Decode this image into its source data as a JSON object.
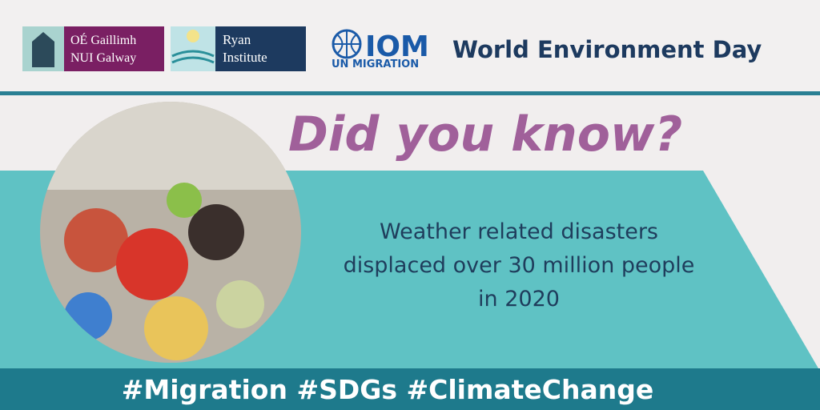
{
  "logos": {
    "nui": [
      "OÉ Gaillimh",
      "NUI Galway"
    ],
    "ryan": [
      "Ryan",
      "Institute"
    ],
    "iom": {
      "name": "IOM",
      "tagline": "UN MIGRATION"
    }
  },
  "header": {
    "title": "World Environment Day"
  },
  "heading": "Did you know?",
  "body": {
    "lines": [
      "Weather related disasters",
      "displaced over 30 million people",
      "in 2020"
    ]
  },
  "footer": {
    "hashtags": "#Migration #SDGs #ClimateChange"
  }
}
